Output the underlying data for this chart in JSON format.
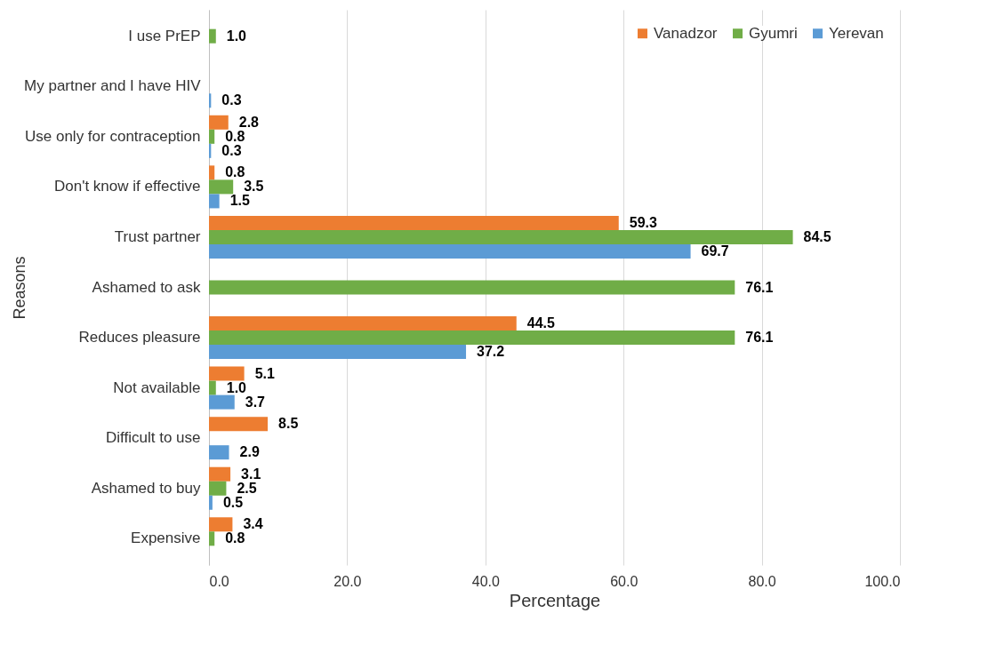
{
  "chart_data": {
    "type": "bar",
    "orientation": "horizontal",
    "xlabel": "Percentage",
    "ylabel": "Reasons",
    "categories": [
      "I use PrEP",
      "My partner and I have HIV",
      "Use only for contraception",
      "Don't know if effective",
      "Trust partner",
      "Ashamed to ask",
      "Reduces pleasure",
      "Not available",
      "Difficult to use",
      "Ashamed to buy",
      "Expensive"
    ],
    "series": [
      {
        "name": "Vanadzor",
        "color": "#ed7d31",
        "values": [
          null,
          null,
          2.8,
          0.8,
          59.3,
          null,
          44.5,
          5.1,
          8.5,
          3.1,
          3.4
        ],
        "value_labels": [
          null,
          null,
          "2.8",
          "0.8",
          "59.3",
          null,
          "44.5",
          "5.1",
          "8.5",
          "3.1",
          "3.4"
        ]
      },
      {
        "name": "Gyumri",
        "color": "#70ad47",
        "values": [
          1.0,
          null,
          0.8,
          3.5,
          84.5,
          76.1,
          76.1,
          1.0,
          null,
          2.5,
          0.8
        ],
        "value_labels": [
          "1.0",
          null,
          "0.8",
          "3.5",
          "84.5",
          "76.1",
          "76.1",
          "1.0",
          null,
          "2.5",
          "0.8"
        ]
      },
      {
        "name": "Yerevan",
        "color": "#5b9bd5",
        "values": [
          null,
          0.3,
          0.3,
          1.5,
          69.7,
          null,
          37.2,
          3.7,
          2.9,
          0.5,
          null
        ],
        "value_labels": [
          null,
          "0.3",
          "0.3",
          "1.5",
          "69.7",
          null,
          "37.2",
          "3.7",
          "2.9",
          "0.5",
          null
        ]
      }
    ],
    "xlim": [
      0,
      100
    ],
    "xticks": [
      {
        "value": 0,
        "label": "0.0"
      },
      {
        "value": 20,
        "label": "20.0"
      },
      {
        "value": 40,
        "label": "40.0"
      },
      {
        "value": 60,
        "label": "60.0"
      },
      {
        "value": 80,
        "label": "80.0"
      },
      {
        "value": 100,
        "label": "100.0"
      }
    ],
    "grid": "x",
    "legend": "top right"
  }
}
